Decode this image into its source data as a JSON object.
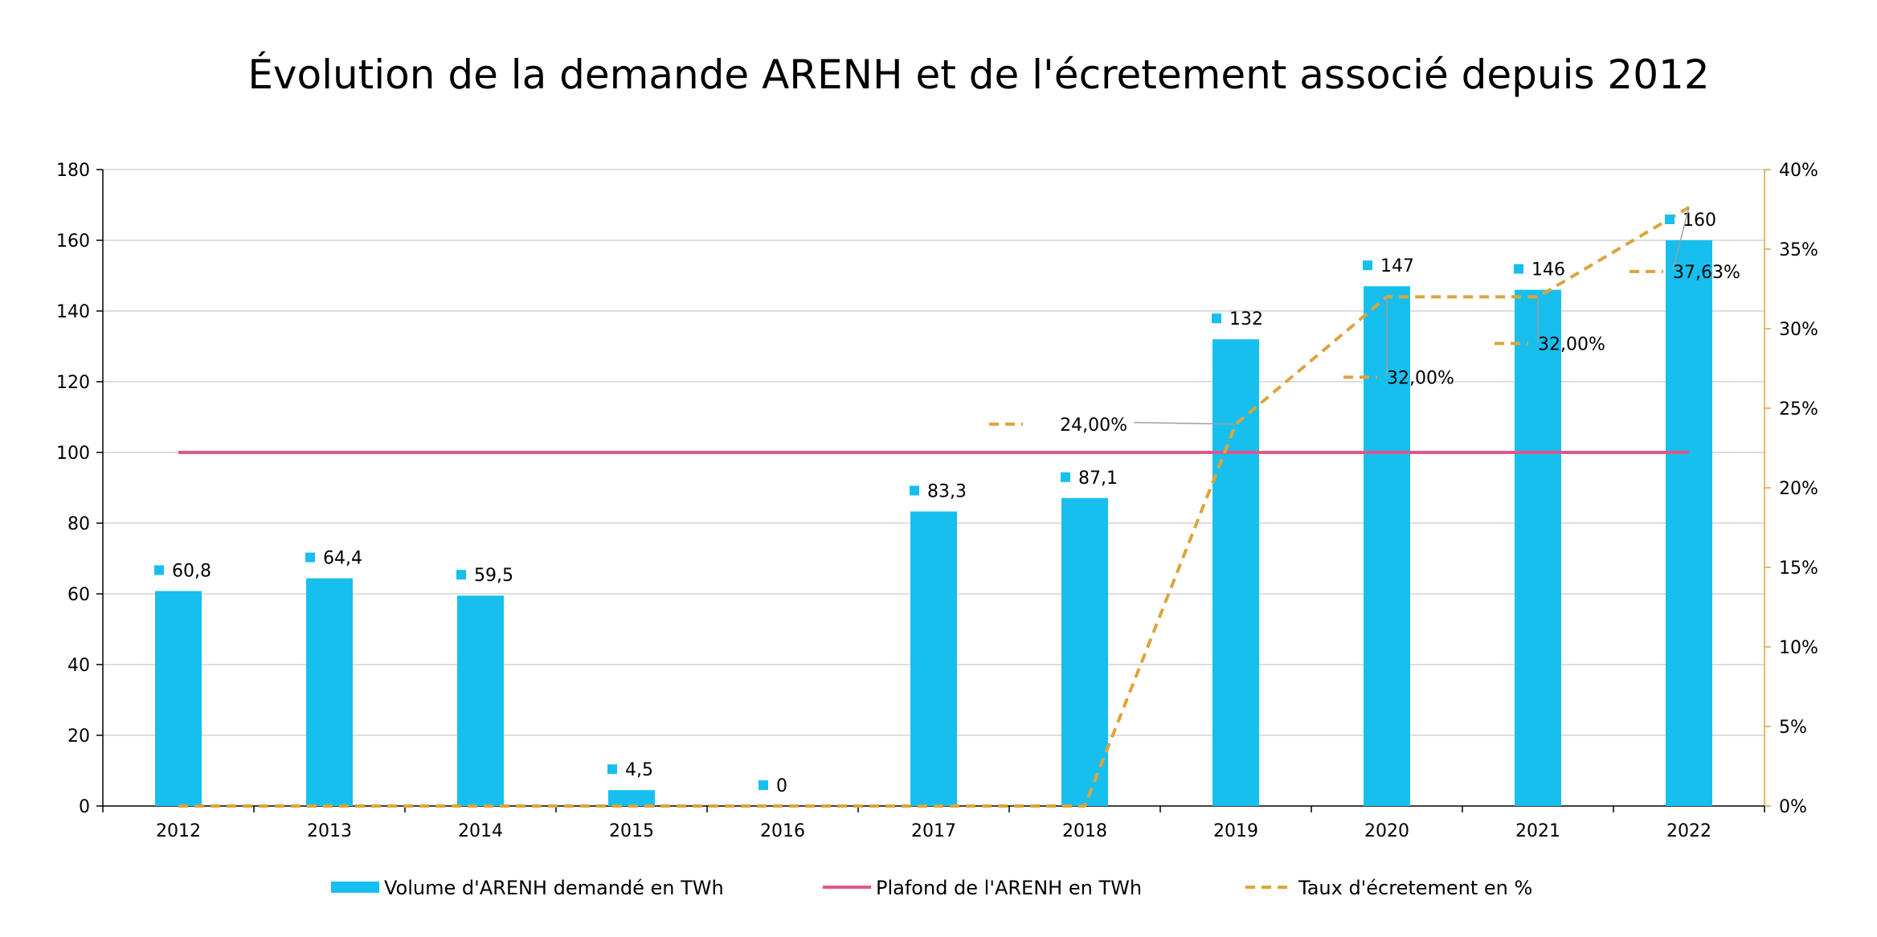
{
  "chart_data": {
    "type": "bar",
    "title": "Évolution de la demande ARENH et de l'écretement associé depuis 2012",
    "categories": [
      "2012",
      "2013",
      "2014",
      "2015",
      "2016",
      "2017",
      "2018",
      "2019",
      "2020",
      "2021",
      "2022"
    ],
    "y_left": {
      "ylim": [
        0,
        180
      ],
      "ticks": [
        "0",
        "20",
        "40",
        "60",
        "80",
        "100",
        "120",
        "140",
        "160",
        "180"
      ]
    },
    "y_right": {
      "ylim": [
        0,
        0.4
      ],
      "ticks": [
        "0%",
        "5%",
        "10%",
        "15%",
        "20%",
        "25%",
        "30%",
        "35%",
        "40%"
      ]
    },
    "grid": "horizontal",
    "legend_position": "bottom",
    "series": [
      {
        "name": "Volume d'ARENH demandé en TWh",
        "type": "bar",
        "axis": "left",
        "color": "#17BFEF",
        "values": [
          60.8,
          64.4,
          59.5,
          4.5,
          0,
          83.3,
          87.1,
          132,
          147,
          146,
          160
        ],
        "labels": [
          "60,8",
          "64,4",
          "59,5",
          "4,5",
          "0",
          "83,3",
          "87,1",
          "132",
          "147",
          "146",
          "160"
        ]
      },
      {
        "name": "Plafond de l'ARENH en TWh",
        "type": "line",
        "axis": "left",
        "color": "#E0568C",
        "values": [
          100,
          100,
          100,
          100,
          100,
          100,
          100,
          100,
          100,
          100,
          100
        ]
      },
      {
        "name": "Taux d'écretement en %",
        "type": "line",
        "style": "dashed",
        "axis": "right",
        "color": "#DDA43B",
        "values": [
          0,
          0,
          0,
          0,
          0,
          0,
          0,
          0.24,
          0.32,
          0.32,
          0.3763
        ],
        "labels": [
          "",
          "",
          "",
          "",
          "",
          "",
          "",
          "24,00%",
          "32,00%",
          "32,00%",
          "37,63%"
        ]
      }
    ]
  }
}
